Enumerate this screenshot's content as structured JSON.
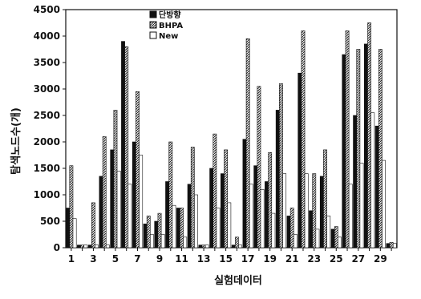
{
  "chart_data": {
    "type": "bar",
    "xlabel": "실험데이터",
    "ylabel": "탐색노드수(개)",
    "ylim": [
      0,
      4500
    ],
    "yticks": [
      0,
      500,
      1000,
      1500,
      2000,
      2500,
      3000,
      3500,
      4000,
      4500
    ],
    "categories": [
      "1",
      "2",
      "3",
      "4",
      "5",
      "6",
      "7",
      "8",
      "9",
      "10",
      "11",
      "12",
      "13",
      "14",
      "15",
      "16",
      "17",
      "18",
      "19",
      "20",
      "21",
      "22",
      "23",
      "24",
      "25",
      "26",
      "27",
      "28",
      "29",
      "30"
    ],
    "xtick_labels": [
      "1",
      "3",
      "5",
      "7",
      "9",
      "11",
      "13",
      "15",
      "17",
      "19",
      "21",
      "23",
      "25",
      "27",
      "29"
    ],
    "legend_position": "top-center",
    "grid": false,
    "series": [
      {
        "name": "단방향",
        "pattern": "solid",
        "color": "#111111",
        "values": [
          750,
          50,
          50,
          1350,
          1850,
          3900,
          2000,
          450,
          500,
          1250,
          750,
          1200,
          50,
          1500,
          1400,
          50,
          2050,
          1550,
          1250,
          2600,
          600,
          3300,
          700,
          1350,
          350,
          3650,
          2500,
          3850,
          2300,
          80
        ]
      },
      {
        "name": "BHPA",
        "pattern": "hatched",
        "color": "#555555",
        "values": [
          1550,
          50,
          850,
          2100,
          2600,
          3800,
          2950,
          600,
          650,
          2000,
          750,
          1900,
          50,
          2150,
          1850,
          200,
          3950,
          3050,
          1800,
          3100,
          750,
          4100,
          1400,
          1850,
          400,
          4100,
          3750,
          4250,
          3750,
          100
        ]
      },
      {
        "name": "New",
        "pattern": "empty",
        "color": "#ffffff",
        "values": [
          550,
          50,
          50,
          50,
          1450,
          1200,
          1750,
          250,
          250,
          800,
          200,
          1000,
          50,
          750,
          850,
          50,
          1200,
          1100,
          650,
          1400,
          250,
          1400,
          350,
          600,
          200,
          1200,
          1600,
          2550,
          1650,
          80
        ]
      }
    ]
  }
}
